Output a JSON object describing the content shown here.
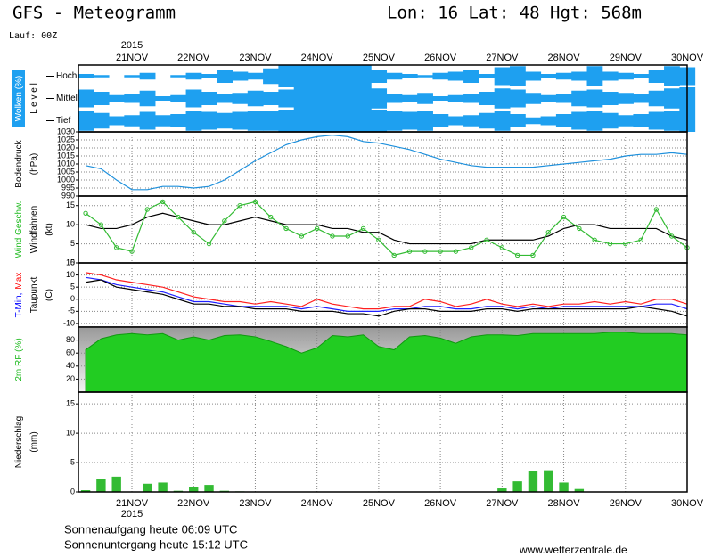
{
  "header": {
    "title": "GFS - Meteogramm",
    "location": "Lon: 16 Lat: 48 Hgt: 568m",
    "run": "Lauf: 00Z"
  },
  "time": {
    "year": "2015",
    "categories": [
      null,
      null,
      null,
      "21NOV",
      null,
      null,
      null,
      "22NOV",
      null,
      null,
      null,
      "23NOV",
      null,
      null,
      null,
      "24NOV",
      null,
      null,
      null,
      "25NOV",
      null,
      null,
      null,
      "26NOV",
      null,
      null,
      null,
      "27NOV",
      null,
      null,
      null,
      "28NOV",
      null,
      null,
      null,
      "29NOV",
      null,
      null,
      null,
      "30NOV"
    ]
  },
  "footer": {
    "sunrise": "Sonnenaufgang heute 06:09 UTC",
    "sunset": "Sonnenuntergang heute 15:12 UTC",
    "source": "www.wetterzentrale.de"
  },
  "chart_data": [
    {
      "type": "cloud",
      "ylabel": [
        [
          {
            "text": "Wolken (%)",
            "color": "#ffffff"
          }
        ],
        [
          {
            "text": "L e v e l",
            "color": "#000000"
          }
        ]
      ],
      "level_labels": [
        "Hoch",
        "Mittel",
        "Tief"
      ],
      "ylim": [
        0,
        100
      ],
      "series": [
        {
          "name": "Hoch",
          "color": "#1ea0f0",
          "values": [
            20,
            10,
            0,
            10,
            30,
            0,
            10,
            30,
            20,
            60,
            40,
            30,
            70,
            100,
            100,
            100,
            100,
            100,
            100,
            60,
            30,
            20,
            10,
            30,
            40,
            60,
            20,
            80,
            90,
            40,
            20,
            30,
            40,
            90,
            40,
            30,
            20,
            60,
            90,
            80
          ]
        },
        {
          "name": "Mittel",
          "color": "#1ea0f0",
          "values": [
            80,
            60,
            30,
            40,
            70,
            20,
            30,
            80,
            60,
            40,
            50,
            70,
            60,
            80,
            100,
            100,
            100,
            100,
            100,
            90,
            40,
            30,
            50,
            20,
            30,
            40,
            60,
            90,
            80,
            50,
            30,
            40,
            70,
            80,
            60,
            50,
            40,
            70,
            90,
            100
          ]
        },
        {
          "name": "Tief",
          "color": "#1ea0f0",
          "values": [
            90,
            70,
            40,
            50,
            80,
            50,
            60,
            90,
            80,
            70,
            80,
            90,
            90,
            100,
            100,
            100,
            100,
            100,
            100,
            100,
            90,
            80,
            90,
            60,
            40,
            50,
            70,
            90,
            60,
            30,
            40,
            60,
            80,
            90,
            70,
            50,
            60,
            80,
            90,
            100
          ]
        }
      ]
    },
    {
      "type": "line",
      "ylabel": [
        [
          {
            "text": "Bodendruck",
            "color": "#000000"
          }
        ],
        [
          {
            "text": "(hPa)",
            "color": "#000000"
          }
        ]
      ],
      "ylim": [
        990,
        1030
      ],
      "yticks": [
        990,
        995,
        1000,
        1005,
        1010,
        1015,
        1020,
        1025,
        1030
      ],
      "grid": true,
      "series": [
        {
          "name": "Bodendruck",
          "color": "#1e90dc",
          "values": [
            1009,
            1007,
            1000,
            994,
            994,
            996,
            996,
            995,
            996,
            1000,
            1006,
            1012,
            1017,
            1022,
            1025,
            1027,
            1028,
            1027,
            1024,
            1023,
            1021,
            1019,
            1016,
            1013,
            1011,
            1009,
            1008,
            1008,
            1008,
            1008,
            1009,
            1010,
            1011,
            1012,
            1013,
            1015,
            1016,
            1016,
            1017,
            1016
          ]
        }
      ]
    },
    {
      "type": "line",
      "ylabel": [
        [
          {
            "text": "Wind Geschw.",
            "color": "#22bb22"
          }
        ],
        [
          {
            "text": "Windfahnen",
            "color": "#000000"
          }
        ],
        [
          {
            "text": "(kt)",
            "color": "#000000"
          }
        ]
      ],
      "ylim": [
        0,
        17.5
      ],
      "yticks": [
        0,
        5,
        10,
        15
      ],
      "grid": true,
      "series": [
        {
          "name": "Windfahnen",
          "color": "#000000",
          "values": [
            10,
            9,
            9,
            10,
            12,
            13,
            12,
            11,
            10,
            10,
            11,
            12,
            11,
            10,
            10,
            10,
            9,
            9,
            8,
            8,
            6,
            5,
            5,
            5,
            5,
            5,
            6,
            6,
            6,
            6,
            7,
            9,
            10,
            10,
            9,
            9,
            9,
            9,
            7,
            6
          ]
        },
        {
          "name": "Wind Geschw.",
          "color": "#33bb33",
          "markers": true,
          "values": [
            13,
            10,
            4,
            3,
            14,
            16,
            12,
            8,
            5,
            11,
            15,
            16,
            12,
            9,
            7,
            9,
            7,
            7,
            9,
            6,
            2,
            3,
            3,
            3,
            3,
            4,
            6,
            4,
            2,
            2,
            8,
            12,
            9,
            6,
            5,
            5,
            6,
            14,
            7,
            4
          ]
        }
      ]
    },
    {
      "type": "line",
      "ylabel": [
        [
          {
            "text": "T-Min,",
            "color": "#0000ff"
          },
          {
            "text": "Max",
            "color": "#ff0000"
          }
        ],
        [
          {
            "text": "Taupunkt",
            "color": "#000000"
          }
        ],
        [
          {
            "text": "(C)",
            "color": "#000000"
          }
        ]
      ],
      "ylim": [
        -11.5,
        15
      ],
      "yticks": [
        -10,
        -5,
        0,
        5,
        10,
        15
      ],
      "grid": true,
      "series": [
        {
          "name": "Max",
          "color": "#ff2020",
          "values": [
            11,
            10,
            8,
            7,
            6,
            5,
            3,
            1,
            0,
            -1,
            -1,
            -2,
            -1,
            -2,
            -3,
            0,
            -2,
            -3,
            -4,
            -4,
            -3,
            -3,
            0,
            -1,
            -3,
            -2,
            0,
            -2,
            -3,
            -2,
            -3,
            -2,
            -2,
            -1,
            -2,
            -1,
            -2,
            0,
            0,
            -2
          ]
        },
        {
          "name": "T-Min",
          "color": "#2020ff",
          "values": [
            9,
            8,
            6,
            5,
            4,
            3,
            1,
            -1,
            -1,
            -2,
            -3,
            -3,
            -3,
            -3,
            -4,
            -3,
            -4,
            -5,
            -5,
            -5,
            -4,
            -4,
            -3,
            -3,
            -4,
            -4,
            -3,
            -3,
            -4,
            -3,
            -4,
            -3,
            -3,
            -3,
            -3,
            -3,
            -3,
            -2,
            -2,
            -4
          ]
        },
        {
          "name": "Taupunkt",
          "color": "#000000",
          "values": [
            7,
            8,
            5,
            4,
            3,
            2,
            0,
            -2,
            -2,
            -3,
            -3,
            -4,
            -4,
            -4,
            -5,
            -5,
            -5,
            -6,
            -6,
            -7,
            -5,
            -4,
            -4,
            -5,
            -5,
            -5,
            -4,
            -4,
            -5,
            -4,
            -4,
            -4,
            -4,
            -4,
            -4,
            -4,
            -3,
            -4,
            -5,
            -7
          ]
        }
      ]
    },
    {
      "type": "area",
      "ylabel": [
        [
          {
            "text": "2m RF (%)",
            "color": "#22bb22"
          }
        ]
      ],
      "ylim": [
        0,
        100
      ],
      "yticks": [
        20,
        40,
        60,
        80
      ],
      "grid": true,
      "series": [
        {
          "name": "2m RF",
          "color": "#22cc22",
          "values": [
            65,
            82,
            88,
            90,
            88,
            90,
            80,
            85,
            80,
            87,
            88,
            85,
            78,
            70,
            60,
            68,
            87,
            85,
            88,
            70,
            65,
            85,
            87,
            83,
            75,
            85,
            88,
            88,
            87,
            90,
            90,
            90,
            90,
            90,
            92,
            92,
            90,
            90,
            90,
            88
          ]
        }
      ]
    },
    {
      "type": "bar",
      "ylabel": [
        [
          {
            "text": "Niederschlag",
            "color": "#000000"
          }
        ],
        [
          {
            "text": "(mm)",
            "color": "#000000"
          }
        ]
      ],
      "ylim": [
        0,
        17
      ],
      "yticks": [
        0,
        5,
        10,
        15
      ],
      "grid": true,
      "series": [
        {
          "name": "Niederschlag",
          "color": "#33bb33",
          "values": [
            0.3,
            2.2,
            2.6,
            0,
            1.4,
            1.6,
            0.2,
            0.8,
            1.2,
            0.2,
            0.1,
            0,
            0,
            0,
            0,
            0,
            0,
            0,
            0,
            0,
            0,
            0,
            0,
            0,
            0,
            0,
            0,
            0.6,
            1.8,
            3.6,
            3.7,
            1.6,
            0.5,
            0,
            0,
            0,
            0,
            0,
            0,
            0
          ]
        }
      ]
    }
  ]
}
